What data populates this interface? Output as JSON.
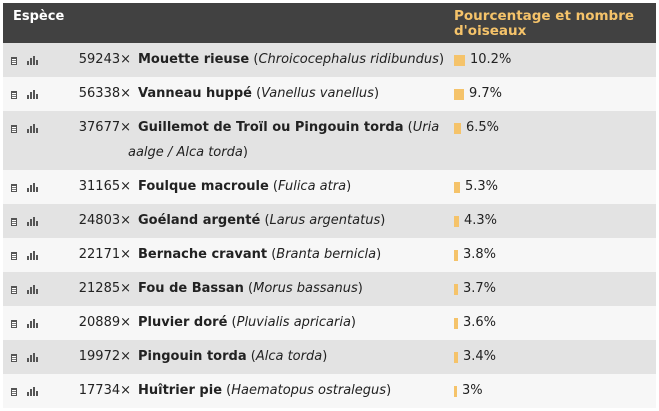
{
  "header": {
    "species_label": "Espèce",
    "percent_label_line1": "Pourcentage et nombre",
    "percent_label_line2": "d'oiseaux"
  },
  "accent_color": "#f5c36a",
  "rows": [
    {
      "count": "59243×",
      "common": "Mouette rieuse",
      "latin": "Chroicocephalus ridibundus",
      "pct": "10.2%",
      "share": 10.2
    },
    {
      "count": "56338×",
      "common": "Vanneau huppé",
      "latin": "Vanellus vanellus",
      "pct": "9.7%",
      "share": 9.7
    },
    {
      "count": "37677×",
      "common": "Guillemot de Troïl ou Pingouin torda",
      "latin": "Uria aalge / Alca torda",
      "pct": "6.5%",
      "share": 6.5
    },
    {
      "count": "31165×",
      "common": "Foulque macroule",
      "latin": "Fulica atra",
      "pct": "5.3%",
      "share": 5.3
    },
    {
      "count": "24803×",
      "common": "Goéland argenté",
      "latin": "Larus argentatus",
      "pct": "4.3%",
      "share": 4.3
    },
    {
      "count": "22171×",
      "common": "Bernache cravant",
      "latin": "Branta bernicla",
      "pct": "3.8%",
      "share": 3.8
    },
    {
      "count": "21285×",
      "common": "Fou de Bassan",
      "latin": "Morus bassanus",
      "pct": "3.7%",
      "share": 3.7
    },
    {
      "count": "20889×",
      "common": "Pluvier doré",
      "latin": "Pluvialis apricaria",
      "pct": "3.6%",
      "share": 3.6
    },
    {
      "count": "19972×",
      "common": "Pingouin torda",
      "latin": "Alca torda",
      "pct": "3.4%",
      "share": 3.4
    },
    {
      "count": "17734×",
      "common": "Huîtrier pie",
      "latin": "Haematopus ostralegus",
      "pct": "3%",
      "share": 3.0
    }
  ]
}
